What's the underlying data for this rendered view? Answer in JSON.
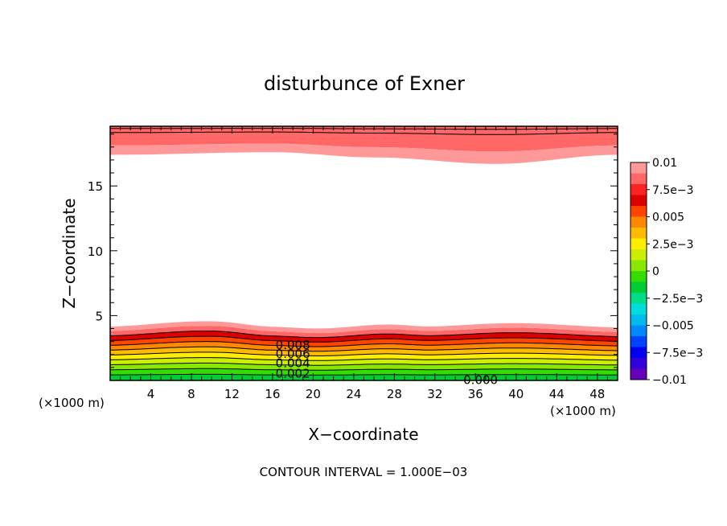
{
  "chart_data": {
    "type": "contour",
    "title": "disturbunce of Exner",
    "xlabel": "X−coordinate",
    "ylabel": "Z−coordinate",
    "x_unit": "(×1000 m)",
    "y_unit": "(×1000 m)",
    "xlim": [
      0,
      50
    ],
    "ylim": [
      0,
      19.6
    ],
    "x_ticks": [
      4,
      8,
      12,
      16,
      20,
      24,
      28,
      32,
      36,
      40,
      44,
      48
    ],
    "y_ticks": [
      5,
      10,
      15
    ],
    "footer": "CONTOUR INTERVAL = 1.000E−03",
    "contour_labels": [
      {
        "text": "0.008",
        "x": 18,
        "y": 2.8
      },
      {
        "text": "0.006",
        "x": 18,
        "y": 2.1
      },
      {
        "text": "0.004",
        "x": 18,
        "y": 1.4
      },
      {
        "text": "0.002",
        "x": 18,
        "y": 0.6
      },
      {
        "text": "0.000",
        "x": 36.5,
        "y": 0.1
      }
    ],
    "colorbar": {
      "tick_labels": [
        "0.01",
        "7.5e−3",
        "0.005",
        "2.5e−3",
        "0",
        "−2.5e−3",
        "−0.005",
        "−7.5e−3",
        "−0.01"
      ],
      "colors": [
        "#ff9999",
        "#ff6666",
        "#ff2222",
        "#dd0000",
        "#ff4400",
        "#ff8800",
        "#ffbb00",
        "#ffee00",
        "#ccee00",
        "#88e800",
        "#33dd00",
        "#00cc33",
        "#00dd88",
        "#00dddd",
        "#00bbee",
        "#0088ff",
        "#0044ff",
        "#0000ee",
        "#3300dd",
        "#6600bb"
      ]
    },
    "lower_layer": {
      "top_height_profile": [
        [
          0,
          3.8
        ],
        [
          10,
          4.1
        ],
        [
          16,
          3.8
        ],
        [
          20,
          3.75
        ],
        [
          27,
          4.05
        ],
        [
          32,
          3.8
        ],
        [
          40,
          3.95
        ],
        [
          50,
          3.8
        ]
      ],
      "levels": [
        0.0,
        0.001,
        0.002,
        0.003,
        0.004,
        0.005,
        0.006,
        0.007,
        0.008,
        0.009,
        0.01
      ]
    },
    "upper_layer": {
      "bottom_height_profile": [
        [
          0,
          17.4
        ],
        [
          16,
          17.6
        ],
        [
          26,
          17.2
        ],
        [
          38,
          16.7
        ],
        [
          50,
          17.4
        ]
      ],
      "top_value": 0.01
    }
  }
}
